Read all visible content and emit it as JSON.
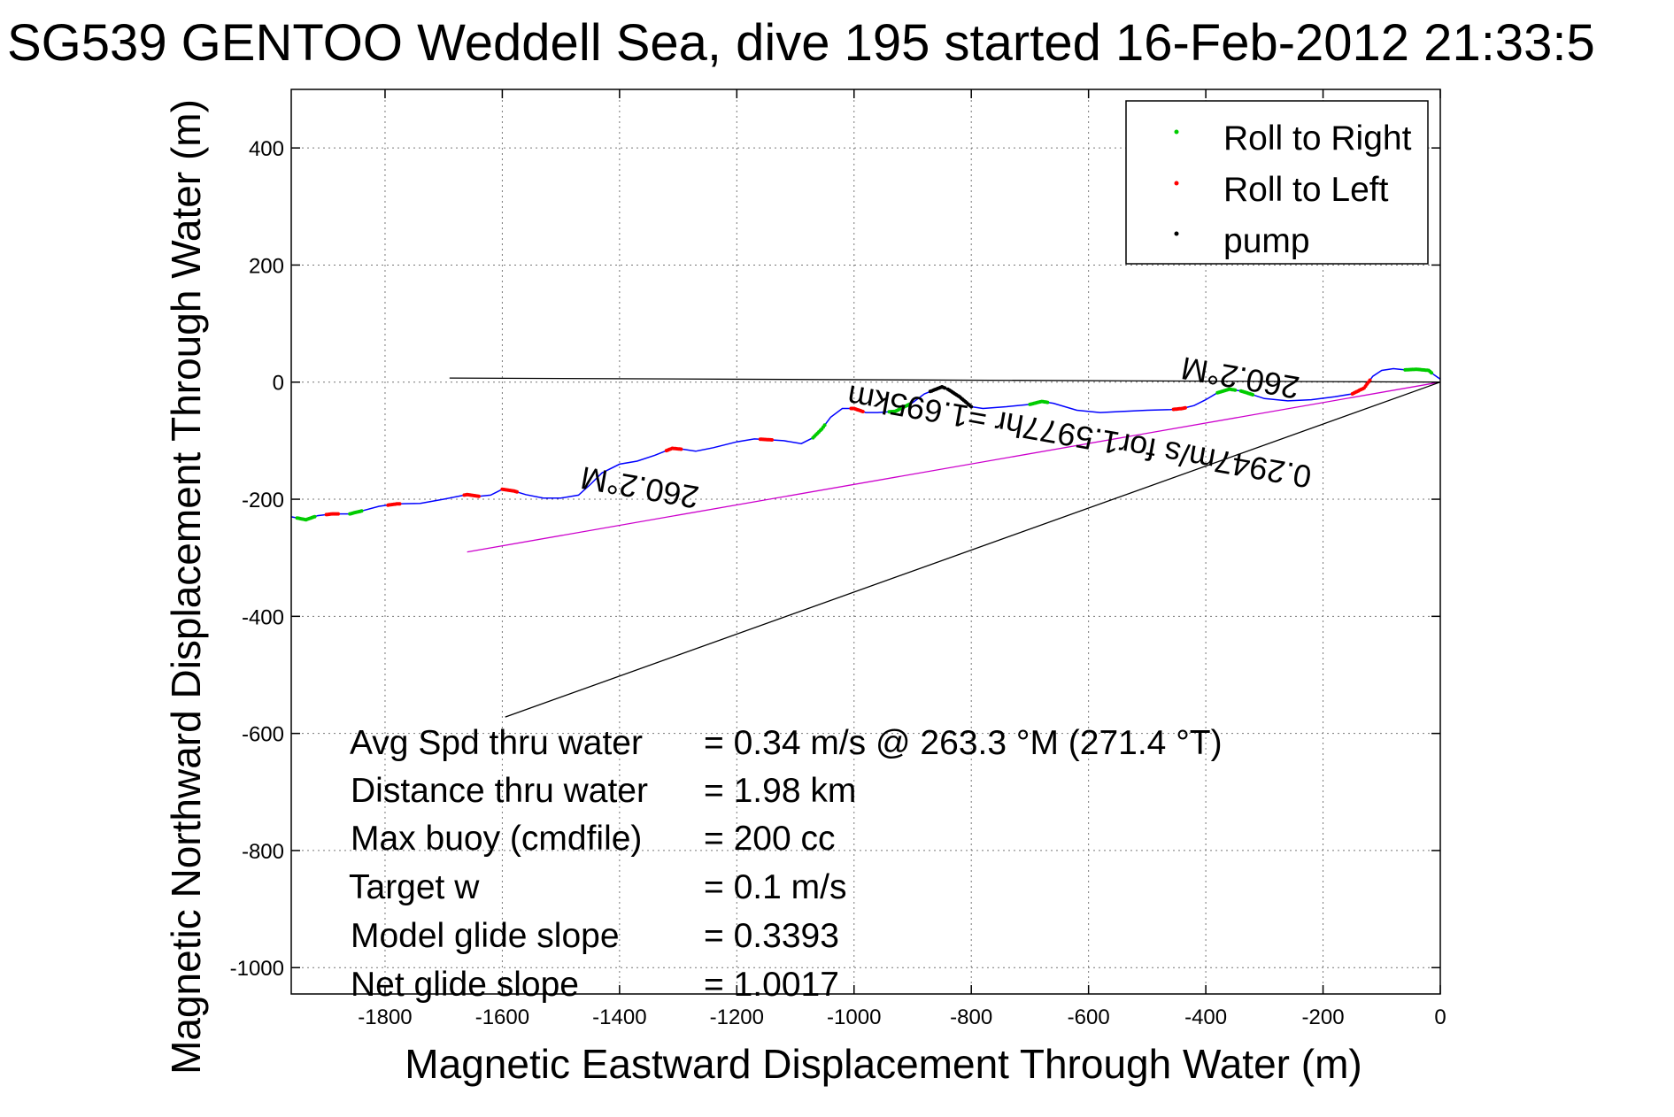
{
  "chart_data": {
    "type": "line",
    "title": "SG539 GENTOO Weddell Sea, dive 195 started 16-Feb-2012 21:33:5",
    "xlabel": "Magnetic Eastward Displacement Through Water (m)",
    "ylabel": "Magnetic Northward Displacement Through Water (m)",
    "xlim": [
      -1960,
      0
    ],
    "ylim": [
      -1045,
      500
    ],
    "xticks": [
      -1800,
      -1600,
      -1400,
      -1200,
      -1000,
      -800,
      -600,
      -400,
      -200,
      0
    ],
    "yticks": [
      -1000,
      -800,
      -600,
      -400,
      -200,
      0,
      200,
      400
    ],
    "grid": true,
    "legend_position": "top-right",
    "legend": [
      {
        "label": "Roll to Right",
        "color": "#00cc00"
      },
      {
        "label": "Roll to Left",
        "color": "#ff0000"
      },
      {
        "label": "pump",
        "color": "#000000"
      }
    ],
    "series": [
      {
        "type": "track",
        "color": "#0000ff",
        "x": [
          -1960,
          -1935,
          -1915,
          -1890,
          -1860,
          -1840,
          -1810,
          -1780,
          -1740,
          -1700,
          -1660,
          -1640,
          -1620,
          -1600,
          -1580,
          -1560,
          -1530,
          -1500,
          -1470,
          -1450,
          -1430,
          -1400,
          -1370,
          -1340,
          -1310,
          -1290,
          -1270,
          -1240,
          -1200,
          -1170,
          -1150,
          -1120,
          -1090,
          -1070,
          -1055,
          -1040,
          -1020,
          -1000,
          -980,
          -960,
          -930,
          -900,
          -880,
          -860,
          -850,
          -840,
          -820,
          -800,
          -780,
          -740,
          -700,
          -680,
          -660,
          -620,
          -580,
          -540,
          -500,
          -460,
          -440,
          -420,
          -400,
          -380,
          -360,
          -340,
          -300,
          -260,
          -220,
          -180,
          -150,
          -130,
          -115,
          -100,
          -80,
          -60,
          -40,
          -20,
          -10,
          0
        ],
        "y": [
          -230,
          -235,
          -228,
          -225,
          -225,
          -220,
          -212,
          -208,
          -207,
          -200,
          -192,
          -195,
          -193,
          -183,
          -186,
          -192,
          -198,
          -198,
          -193,
          -175,
          -155,
          -140,
          -135,
          -125,
          -113,
          -115,
          -118,
          -112,
          -102,
          -97,
          -98,
          -100,
          -105,
          -95,
          -80,
          -60,
          -45,
          -45,
          -52,
          -52,
          -50,
          -35,
          -20,
          -12,
          -8,
          -12,
          -25,
          -42,
          -45,
          -42,
          -38,
          -33,
          -36,
          -48,
          -52,
          -50,
          -48,
          -47,
          -45,
          -40,
          -30,
          -18,
          -12,
          -15,
          -28,
          -32,
          -30,
          -25,
          -20,
          -10,
          10,
          20,
          23,
          21,
          22,
          20,
          12,
          5
        ]
      },
      {
        "type": "line",
        "color": "#cc00cc",
        "x": [
          -1660,
          0
        ],
        "y": [
          -290,
          0
        ]
      },
      {
        "type": "line",
        "color": "#000000",
        "x": [
          -1595,
          0
        ],
        "y": [
          -572,
          0
        ]
      },
      {
        "type": "line",
        "color": "#000000",
        "x": [
          -1690,
          0
        ],
        "y": [
          7,
          0
        ]
      }
    ],
    "roll_right_ranges": [
      [
        -1950,
        -1920
      ],
      [
        -1860,
        -1840
      ],
      [
        -1070,
        -1050
      ],
      [
        -940,
        -905
      ],
      [
        -700,
        -670
      ],
      [
        -380,
        -350
      ],
      [
        -340,
        -320
      ],
      [
        -60,
        -15
      ]
    ],
    "roll_left_ranges": [
      [
        -1900,
        -1880
      ],
      [
        -1795,
        -1775
      ],
      [
        -1665,
        -1640
      ],
      [
        -1600,
        -1575
      ],
      [
        -1320,
        -1295
      ],
      [
        -1160,
        -1140
      ],
      [
        -1005,
        -985
      ],
      [
        -455,
        -435
      ],
      [
        -150,
        -120
      ]
    ],
    "pump_ranges": [
      [
        -870,
        -845
      ],
      [
        -840,
        -800
      ]
    ],
    "annotations": {
      "heading_left": "260.2°M",
      "heading_right": "260.2°M",
      "current": "0.2947m/s for1.5977hr =1.695km"
    },
    "stats": [
      {
        "label": "Avg Spd thru water",
        "value": "=  0.34 m/s @ 263.3 °M (271.4 °T)"
      },
      {
        "label": "Distance thru water",
        "value": "=  1.98 km"
      },
      {
        "label": "Max buoy (cmdfile)",
        "value": "= 200 cc"
      },
      {
        "label": "Target w",
        "value": "= 0.1 m/s"
      },
      {
        "label": "Model glide slope",
        "value": "= 0.3393"
      },
      {
        "label": "Net glide slope",
        "value": "= 1.0017"
      }
    ]
  }
}
